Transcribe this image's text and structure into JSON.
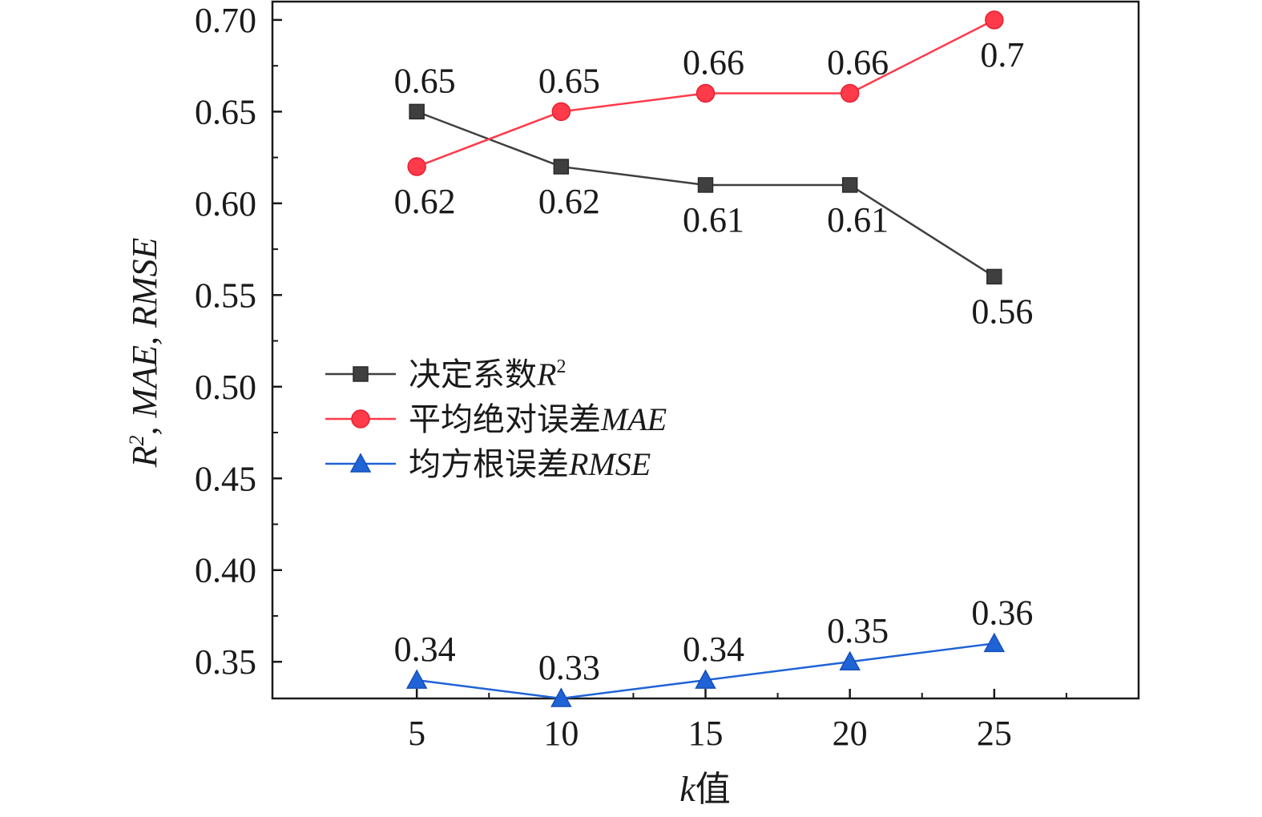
{
  "chart_data": {
    "type": "line",
    "x": [
      5,
      10,
      15,
      20,
      25
    ],
    "xlabel": {
      "italic": "k",
      "rest": "值"
    },
    "ylabel": {
      "base": "R",
      "sup": "2",
      "rest": ", MAE, RMSE"
    },
    "xlim": [
      0,
      30
    ],
    "ylim": [
      0.33,
      0.71
    ],
    "xticks": [
      "5",
      "10",
      "15",
      "20",
      "25"
    ],
    "yticks": [
      "0.35",
      "0.40",
      "0.45",
      "0.50",
      "0.55",
      "0.60",
      "0.65",
      "0.70"
    ],
    "grid": false,
    "legend_position": "center-left",
    "series": [
      {
        "key": "r2",
        "name": "决定系数R²",
        "legend_text": "决定系数",
        "legend_italic": "R",
        "legend_sup": "2",
        "values": [
          0.65,
          0.62,
          0.61,
          0.61,
          0.56
        ],
        "labels": [
          "0.65",
          "0.62",
          "0.61",
          "0.61",
          "0.56"
        ],
        "label_side": [
          "above",
          "below",
          "below",
          "below",
          "below"
        ],
        "color": "#3f3f3f",
        "marker": "square"
      },
      {
        "key": "mae",
        "name": "平均绝对误差MAE",
        "legend_text": "平均绝对误差",
        "legend_italic": "MAE",
        "legend_sup": "",
        "values": [
          0.62,
          0.65,
          0.66,
          0.66,
          0.7
        ],
        "labels": [
          "0.62",
          "0.65",
          "0.66",
          "0.66",
          "0.7"
        ],
        "label_side": [
          "below",
          "above",
          "above",
          "above",
          "below"
        ],
        "color": "#ff3a4a",
        "marker": "circle"
      },
      {
        "key": "rmse",
        "name": "均方根误差RMSE",
        "legend_text": "均方根误差",
        "legend_italic": "RMSE",
        "legend_sup": "",
        "values": [
          0.34,
          0.33,
          0.34,
          0.35,
          0.36
        ],
        "labels": [
          "0.34",
          "0.33",
          "0.34",
          "0.35",
          "0.36"
        ],
        "label_side": [
          "above",
          "above",
          "above",
          "above",
          "above"
        ],
        "color": "#1f63d6",
        "marker": "triangle"
      }
    ]
  }
}
